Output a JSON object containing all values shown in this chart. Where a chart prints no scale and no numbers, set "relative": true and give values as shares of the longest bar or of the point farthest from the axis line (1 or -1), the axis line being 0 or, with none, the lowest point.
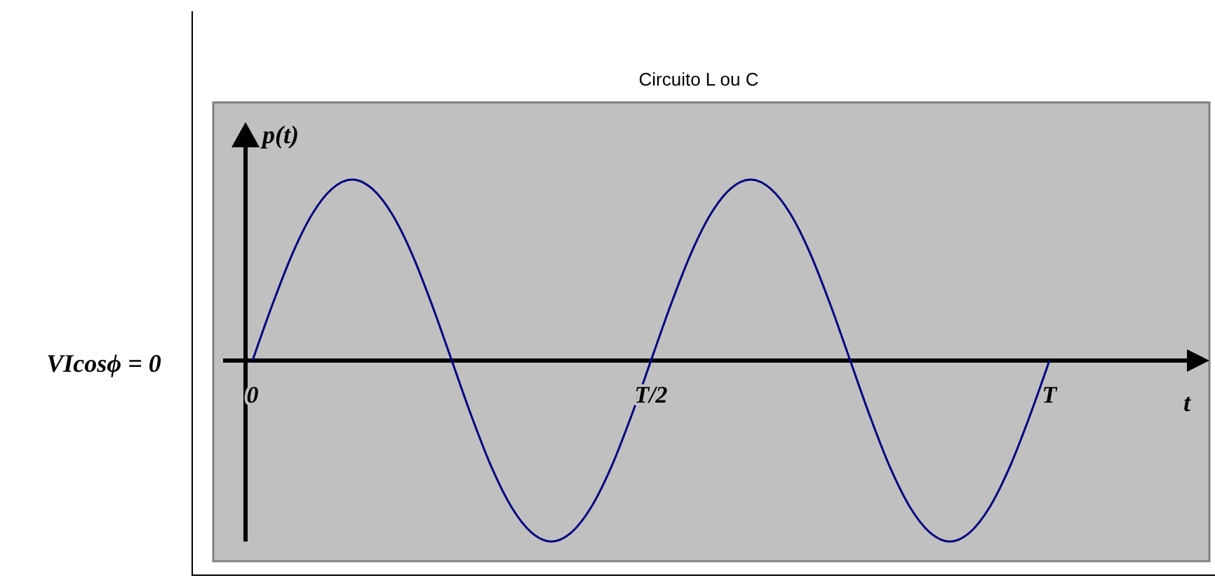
{
  "chart_data": {
    "type": "line",
    "title": "Circuito L ou C",
    "xlabel": "t",
    "ylabel": "p(t)",
    "annotations": [
      "VIcosϕ = 0"
    ],
    "relative": true,
    "categories": [
      "0",
      null,
      null,
      null,
      null,
      null,
      null,
      null,
      null,
      null,
      null,
      null,
      null,
      null,
      null,
      null,
      null,
      null,
      null,
      null,
      "T/2",
      null,
      null,
      null,
      null,
      null,
      null,
      null,
      null,
      null,
      null,
      null,
      null,
      null,
      null,
      null,
      null,
      null,
      null,
      null,
      "T"
    ],
    "series": [
      {
        "color": "#000080",
        "values": [
          0,
          0.31,
          0.59,
          0.81,
          0.95,
          1,
          0.95,
          0.81,
          0.59,
          0.31,
          0,
          -0.31,
          -0.59,
          -0.81,
          -0.95,
          -1,
          -0.95,
          -0.81,
          -0.59,
          -0.31,
          0,
          0.31,
          0.59,
          0.81,
          0.95,
          1,
          0.95,
          0.81,
          0.59,
          0.31,
          0,
          -0.31,
          -0.59,
          -0.81,
          -0.95,
          -1,
          -0.95,
          -0.81,
          -0.59,
          -0.31,
          0
        ]
      }
    ],
    "grid": false,
    "marker": "none",
    "line_style": "solid"
  }
}
